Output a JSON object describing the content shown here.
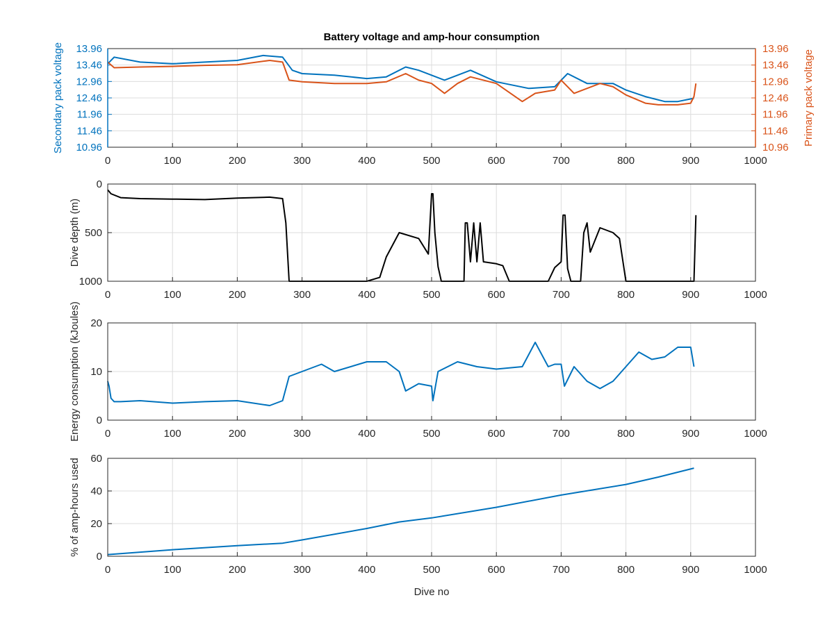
{
  "chart_data": [
    {
      "type": "line",
      "title": "Battery voltage and amp-hour consumption",
      "xlabel": "",
      "ylabel_left": "Secondary pack voltage",
      "ylabel_right": "Primary pack voltage",
      "xlim": [
        0,
        1000
      ],
      "ylim": [
        10.96,
        13.96
      ],
      "xticks": [
        "0",
        "100",
        "200",
        "300",
        "400",
        "500",
        "600",
        "700",
        "800",
        "900",
        "1000"
      ],
      "yticks": [
        "10.96",
        "11.46",
        "11.96",
        "12.46",
        "12.96",
        "13.46",
        "13.96"
      ],
      "yticks_right": [
        "10.96",
        "11.46",
        "11.96",
        "12.46",
        "12.96",
        "13.46",
        "13.96"
      ],
      "grid": true,
      "colors": {
        "left_axis": "#0072BD",
        "right_axis": "#D95319"
      },
      "series": [
        {
          "color": "#0072BD",
          "x": [
            0,
            10,
            50,
            100,
            150,
            200,
            240,
            270,
            285,
            300,
            350,
            400,
            430,
            460,
            480,
            500,
            520,
            560,
            600,
            650,
            690,
            710,
            740,
            780,
            800,
            830,
            860,
            880,
            905
          ],
          "y": [
            13.5,
            13.7,
            13.55,
            13.5,
            13.55,
            13.6,
            13.75,
            13.7,
            13.3,
            13.2,
            13.15,
            13.05,
            13.1,
            13.4,
            13.3,
            13.15,
            13.0,
            13.3,
            12.95,
            12.75,
            12.8,
            13.2,
            12.9,
            12.9,
            12.7,
            12.5,
            12.35,
            12.35,
            12.45
          ]
        },
        {
          "color": "#D95319",
          "x": [
            0,
            10,
            50,
            100,
            150,
            200,
            250,
            270,
            280,
            300,
            350,
            400,
            430,
            460,
            480,
            500,
            520,
            540,
            560,
            600,
            640,
            660,
            690,
            700,
            720,
            760,
            780,
            800,
            830,
            850,
            880,
            900,
            905,
            908
          ],
          "y": [
            13.55,
            13.38,
            13.4,
            13.42,
            13.45,
            13.47,
            13.6,
            13.55,
            13.0,
            12.95,
            12.9,
            12.9,
            12.95,
            13.2,
            13.0,
            12.9,
            12.6,
            12.9,
            13.1,
            12.9,
            12.35,
            12.6,
            12.7,
            13.0,
            12.6,
            12.9,
            12.8,
            12.55,
            12.3,
            12.25,
            12.25,
            12.3,
            12.5,
            12.9
          ]
        }
      ]
    },
    {
      "type": "line",
      "xlabel": "",
      "ylabel": "Dive depth (m)",
      "xlim": [
        0,
        1000
      ],
      "ylim": [
        0,
        1000
      ],
      "y_reversed": true,
      "xticks": [
        "0",
        "100",
        "200",
        "300",
        "400",
        "500",
        "600",
        "700",
        "800",
        "900",
        "1000"
      ],
      "yticks": [
        "0",
        "500",
        "1000"
      ],
      "grid": true,
      "series": [
        {
          "color": "#000000",
          "x": [
            0,
            5,
            20,
            50,
            100,
            150,
            200,
            250,
            270,
            275,
            280,
            300,
            400,
            420,
            430,
            450,
            480,
            495,
            500,
            502,
            505,
            510,
            515,
            550,
            552,
            555,
            560,
            565,
            570,
            575,
            580,
            600,
            610,
            620,
            680,
            690,
            700,
            703,
            706,
            710,
            715,
            730,
            735,
            740,
            745,
            760,
            780,
            790,
            800,
            900,
            905,
            908
          ],
          "y": [
            60,
            100,
            140,
            150,
            155,
            160,
            145,
            135,
            150,
            400,
            1000,
            1000,
            1000,
            960,
            750,
            500,
            560,
            720,
            100,
            100,
            500,
            850,
            1000,
            1000,
            400,
            400,
            800,
            400,
            800,
            400,
            800,
            820,
            840,
            1000,
            1000,
            860,
            800,
            320,
            320,
            870,
            1000,
            1000,
            500,
            400,
            700,
            450,
            500,
            560,
            1000,
            1000,
            1000,
            320
          ]
        }
      ]
    },
    {
      "type": "line",
      "xlabel": "",
      "ylabel": "Energy consumption (kJoules)",
      "xlim": [
        0,
        1000
      ],
      "ylim": [
        0,
        20
      ],
      "xticks": [
        "0",
        "100",
        "200",
        "300",
        "400",
        "500",
        "600",
        "700",
        "800",
        "900",
        "1000"
      ],
      "yticks": [
        "0",
        "10",
        "20"
      ],
      "grid": true,
      "series": [
        {
          "color": "#0072BD",
          "x": [
            0,
            2,
            5,
            10,
            20,
            50,
            100,
            150,
            200,
            250,
            270,
            280,
            300,
            330,
            350,
            400,
            430,
            450,
            460,
            480,
            500,
            502,
            510,
            540,
            570,
            600,
            640,
            660,
            680,
            690,
            700,
            705,
            720,
            740,
            760,
            780,
            800,
            820,
            840,
            860,
            880,
            900,
            905
          ],
          "y": [
            8,
            7,
            4.5,
            3.8,
            3.8,
            4,
            3.5,
            3.8,
            4,
            3,
            4,
            9,
            10,
            11.5,
            10,
            12,
            12,
            10,
            6,
            7.5,
            7,
            4,
            10,
            12,
            11,
            10.5,
            11,
            16,
            11,
            11.5,
            11.5,
            7,
            11,
            8,
            6.5,
            8,
            11,
            14,
            12.5,
            13,
            15,
            15,
            11
          ]
        }
      ]
    },
    {
      "type": "line",
      "xlabel": "Dive no",
      "ylabel": "% of amp-hours used",
      "xlim": [
        0,
        1000
      ],
      "ylim": [
        0,
        60
      ],
      "xticks": [
        "0",
        "100",
        "200",
        "300",
        "400",
        "500",
        "600",
        "700",
        "800",
        "900",
        "1000"
      ],
      "yticks": [
        "0",
        "20",
        "40",
        "60"
      ],
      "grid": true,
      "series": [
        {
          "color": "#0072BD",
          "x": [
            0,
            100,
            200,
            270,
            300,
            400,
            450,
            500,
            600,
            700,
            800,
            850,
            905
          ],
          "y": [
            1,
            4,
            6.5,
            8,
            10,
            17,
            21,
            23.5,
            30,
            37.5,
            44,
            48.5,
            54
          ]
        }
      ]
    }
  ]
}
